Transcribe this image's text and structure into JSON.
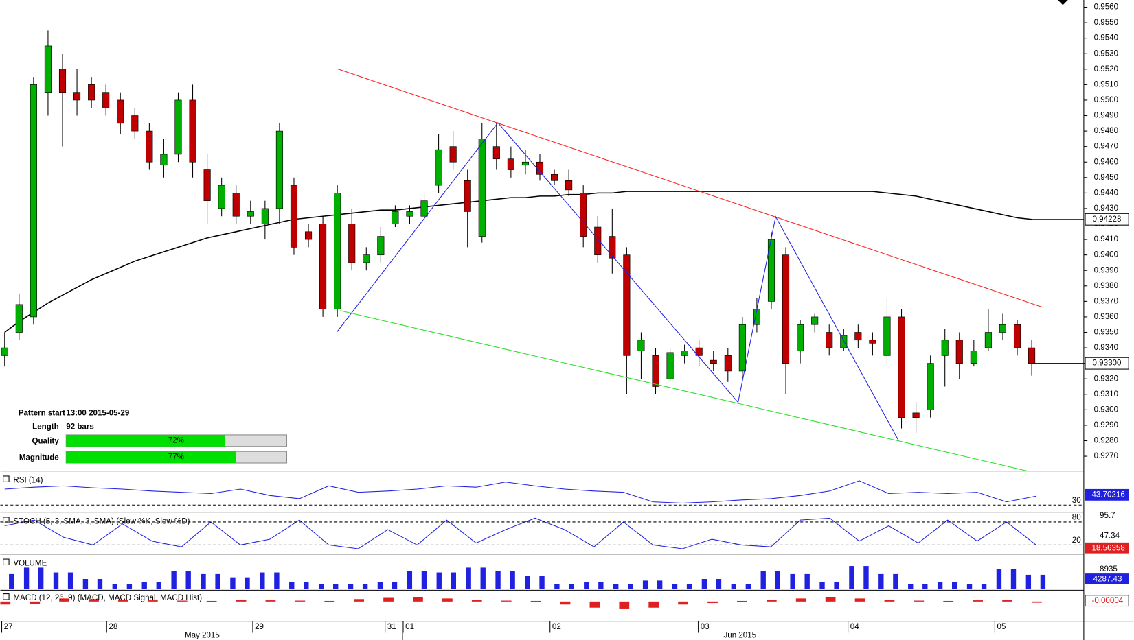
{
  "chart_data": {
    "type": "candlestick",
    "ylim": [
      0.926,
      0.956
    ],
    "yticks": [
      {
        "value": 0.956,
        "label": "0.9560"
      },
      {
        "value": 0.955,
        "label": "0.9550"
      },
      {
        "value": 0.954,
        "label": "0.9540"
      },
      {
        "value": 0.953,
        "label": "0.9530"
      },
      {
        "value": 0.952,
        "label": "0.9520"
      },
      {
        "value": 0.951,
        "label": "0.9510"
      },
      {
        "value": 0.95,
        "label": "0.9500"
      },
      {
        "value": 0.949,
        "label": "0.9490"
      },
      {
        "value": 0.948,
        "label": "0.9480"
      },
      {
        "value": 0.947,
        "label": "0.9470"
      },
      {
        "value": 0.946,
        "label": "0.9460"
      },
      {
        "value": 0.945,
        "label": "0.9450"
      },
      {
        "value": 0.944,
        "label": "0.9440"
      },
      {
        "value": 0.943,
        "label": "0.9430"
      },
      {
        "value": 0.942,
        "label": "0.9420"
      },
      {
        "value": 0.941,
        "label": "0.9410"
      },
      {
        "value": 0.94,
        "label": "0.9400"
      },
      {
        "value": 0.939,
        "label": "0.9390"
      },
      {
        "value": 0.938,
        "label": "0.9380"
      },
      {
        "value": 0.937,
        "label": "0.9370"
      },
      {
        "value": 0.936,
        "label": "0.9360"
      },
      {
        "value": 0.935,
        "label": "0.9350"
      },
      {
        "value": 0.934,
        "label": "0.9340"
      },
      {
        "value": 0.933,
        "label": "0.9330"
      },
      {
        "value": 0.932,
        "label": "0.9320"
      },
      {
        "value": 0.931,
        "label": "0.9310"
      },
      {
        "value": 0.93,
        "label": "0.9300"
      },
      {
        "value": 0.929,
        "label": "0.9290"
      },
      {
        "value": 0.928,
        "label": "0.9280"
      },
      {
        "value": 0.927,
        "label": "0.9270"
      }
    ],
    "x_labels": [
      "27",
      "28",
      "29",
      "31",
      "01",
      "02",
      "03",
      "04",
      "05"
    ],
    "month_labels": [
      "May 2015",
      "Jun 2015"
    ],
    "up_color": "#00b000",
    "down_color": "#c00000",
    "open": [
      0.9335,
      0.935,
      0.936,
      0.9505,
      0.952,
      0.9505,
      0.951,
      0.9505,
      0.95,
      0.949,
      0.948,
      0.9458,
      0.9465,
      0.95,
      0.9455,
      0.943,
      0.944,
      0.9425,
      0.942,
      0.943,
      0.9445,
      0.9415,
      0.942,
      0.9365,
      0.942,
      0.9395,
      0.94,
      0.942,
      0.9425,
      0.9425,
      0.9445,
      0.947,
      0.9448,
      0.9412,
      0.947,
      0.9462,
      0.9458,
      0.946,
      0.9452,
      0.9448,
      0.944,
      0.9418,
      0.9412,
      0.94,
      0.9338,
      0.9335,
      0.932,
      0.9335,
      0.934,
      0.9332,
      0.9335,
      0.9325,
      0.9355,
      0.937,
      0.94,
      0.9338,
      0.9355,
      0.935,
      0.934,
      0.935,
      0.9345,
      0.9335,
      0.936,
      0.9298,
      0.93,
      0.9335,
      0.9345,
      0.933,
      0.934,
      0.935,
      0.9355,
      0.934
    ],
    "high": [
      0.935,
      0.9375,
      0.9515,
      0.9545,
      0.953,
      0.952,
      0.9515,
      0.951,
      0.9505,
      0.9495,
      0.9485,
      0.9475,
      0.9505,
      0.951,
      0.9465,
      0.945,
      0.9445,
      0.9435,
      0.9435,
      0.9485,
      0.945,
      0.942,
      0.9425,
      0.9445,
      0.943,
      0.9405,
      0.9418,
      0.9432,
      0.9432,
      0.944,
      0.9478,
      0.948,
      0.9455,
      0.9485,
      0.9485,
      0.947,
      0.9468,
      0.9465,
      0.9455,
      0.9455,
      0.9445,
      0.9425,
      0.943,
      0.9405,
      0.935,
      0.934,
      0.934,
      0.9342,
      0.9345,
      0.9338,
      0.934,
      0.936,
      0.9372,
      0.9415,
      0.9405,
      0.9358,
      0.9362,
      0.9355,
      0.9352,
      0.9355,
      0.935,
      0.9372,
      0.9365,
      0.9305,
      0.9335,
      0.9352,
      0.935,
      0.9345,
      0.9365,
      0.9362,
      0.9358,
      0.9345
    ],
    "low": [
      0.9328,
      0.9345,
      0.9355,
      0.949,
      0.947,
      0.949,
      0.9495,
      0.949,
      0.9478,
      0.9475,
      0.9455,
      0.945,
      0.946,
      0.945,
      0.942,
      0.9425,
      0.942,
      0.942,
      0.941,
      0.942,
      0.94,
      0.9405,
      0.936,
      0.936,
      0.939,
      0.939,
      0.9395,
      0.9418,
      0.942,
      0.9422,
      0.944,
      0.9455,
      0.9405,
      0.9408,
      0.9455,
      0.945,
      0.9452,
      0.9448,
      0.9445,
      0.9438,
      0.9405,
      0.9395,
      0.9388,
      0.931,
      0.932,
      0.931,
      0.9318,
      0.933,
      0.9328,
      0.9325,
      0.9318,
      0.932,
      0.935,
      0.9365,
      0.931,
      0.933,
      0.935,
      0.9335,
      0.9338,
      0.934,
      0.9335,
      0.933,
      0.9288,
      0.9285,
      0.9295,
      0.9315,
      0.932,
      0.9328,
      0.9338,
      0.9345,
      0.9335,
      0.9322
    ],
    "close": [
      0.934,
      0.9368,
      0.951,
      0.9535,
      0.9505,
      0.95,
      0.95,
      0.9495,
      0.9485,
      0.948,
      0.946,
      0.9465,
      0.95,
      0.946,
      0.9435,
      0.9445,
      0.9425,
      0.9428,
      0.943,
      0.948,
      0.9405,
      0.941,
      0.9365,
      0.944,
      0.9395,
      0.94,
      0.9412,
      0.9428,
      0.9428,
      0.9435,
      0.9468,
      0.946,
      0.9428,
      0.9475,
      0.9462,
      0.9455,
      0.946,
      0.9452,
      0.9448,
      0.9442,
      0.9412,
      0.94,
      0.9398,
      0.9335,
      0.9345,
      0.9315,
      0.9337,
      0.9338,
      0.9335,
      0.933,
      0.9325,
      0.9355,
      0.9365,
      0.941,
      0.933,
      0.9355,
      0.936,
      0.934,
      0.9348,
      0.9345,
      0.9343,
      0.936,
      0.9295,
      0.9295,
      0.933,
      0.9345,
      0.933,
      0.9338,
      0.935,
      0.9355,
      0.934,
      0.933
    ],
    "ma": [
      0.935,
      0.9357,
      0.9363,
      0.9369,
      0.9374,
      0.9379,
      0.9384,
      0.9388,
      0.9392,
      0.9396,
      0.9399,
      0.9402,
      0.9405,
      0.9408,
      0.9411,
      0.9413,
      0.9415,
      0.9417,
      0.9419,
      0.9421,
      0.9423,
      0.9424,
      0.9425,
      0.9426,
      0.9427,
      0.9428,
      0.9429,
      0.9429,
      0.943,
      0.9431,
      0.9432,
      0.9433,
      0.9434,
      0.9435,
      0.9436,
      0.9437,
      0.9437,
      0.9438,
      0.9438,
      0.9439,
      0.9439,
      0.944,
      0.944,
      0.9441,
      0.9441,
      0.9441,
      0.9441,
      0.9441,
      0.9441,
      0.9441,
      0.9441,
      0.9441,
      0.9441,
      0.9441,
      0.9441,
      0.9441,
      0.9441,
      0.9441,
      0.9441,
      0.9441,
      0.9441,
      0.944,
      0.9439,
      0.9438,
      0.9436,
      0.9434,
      0.9432,
      0.943,
      0.9428,
      0.9426,
      0.9424,
      0.9423
    ],
    "ma_label": "0.94228",
    "price_label": "0.93300",
    "pattern": {
      "start_label": "Pattern start",
      "start": "13:00 2015-05-29",
      "length_label": "Length",
      "length": "92 bars",
      "quality_label": "Quality",
      "quality": 72,
      "quality_label_value": "72%",
      "magnitude_label": "Magnitude",
      "magnitude": 77,
      "magnitude_label_value": "77%"
    },
    "rsi": {
      "title": "RSI (14)",
      "ylim": [
        20,
        80
      ],
      "level": 30,
      "value_label": "43.70216",
      "values": [
        55,
        58,
        60,
        57,
        55,
        52,
        50,
        48,
        55,
        45,
        40,
        60,
        50,
        52,
        55,
        60,
        58,
        66,
        60,
        55,
        52,
        50,
        35,
        33,
        35,
        38,
        40,
        45,
        52,
        68,
        48,
        50,
        48,
        50,
        35,
        44
      ]
    },
    "stoch": {
      "title": "STOCH (5, 3, SMA, 3, SMA) (Slow %K, Slow %D)",
      "ylim": [
        0,
        100
      ],
      "levels": [
        80,
        20
      ],
      "top_label": "95.7",
      "mid_label": "47.34",
      "value_label": "18.56358",
      "values": [
        70,
        85,
        40,
        20,
        75,
        30,
        15,
        80,
        20,
        35,
        85,
        20,
        10,
        60,
        20,
        85,
        25,
        60,
        90,
        60,
        15,
        80,
        20,
        10,
        35,
        20,
        15,
        85,
        90,
        30,
        70,
        25,
        85,
        30,
        80,
        20
      ]
    },
    "volume": {
      "title": "VOLUME",
      "ylim": [
        0,
        10000
      ],
      "top_label": "8935",
      "value_label": "4287.43",
      "values": [
        4500,
        6500,
        5000,
        3000,
        1500,
        2000,
        5500,
        4500,
        3500,
        5000,
        2000,
        1500,
        1500,
        2000,
        5500,
        5000,
        6500,
        5500,
        4000,
        1500,
        2000,
        1500,
        2500,
        1500,
        3000,
        1500,
        5500,
        4500,
        2000,
        7000,
        4500,
        1500,
        2000,
        1500,
        6000,
        4287.43
      ]
    },
    "macd": {
      "title": "MACD (12, 26, 9) (MACD, MACD Signal, MACD Hist)",
      "ylim": [
        -0.0006,
        0.0003
      ],
      "value_label": "-0.00004",
      "values": [
        -0.0001,
        -8e-05,
        0.0001,
        8e-05,
        5e-05,
        4e-05,
        3e-05,
        2e-05,
        5e-05,
        4e-05,
        3e-05,
        2e-05,
        8e-05,
        0.00012,
        0.00015,
        0.0001,
        5e-05,
        3e-05,
        2e-05,
        -0.0001,
        -0.0002,
        -0.00025,
        -0.0002,
        -0.0001,
        -5e-05,
        2e-05,
        6e-05,
        0.0001,
        0.00015,
        0.0001,
        5e-05,
        3e-05,
        2e-05,
        4e-05,
        5e-05,
        -4e-05
      ]
    }
  }
}
